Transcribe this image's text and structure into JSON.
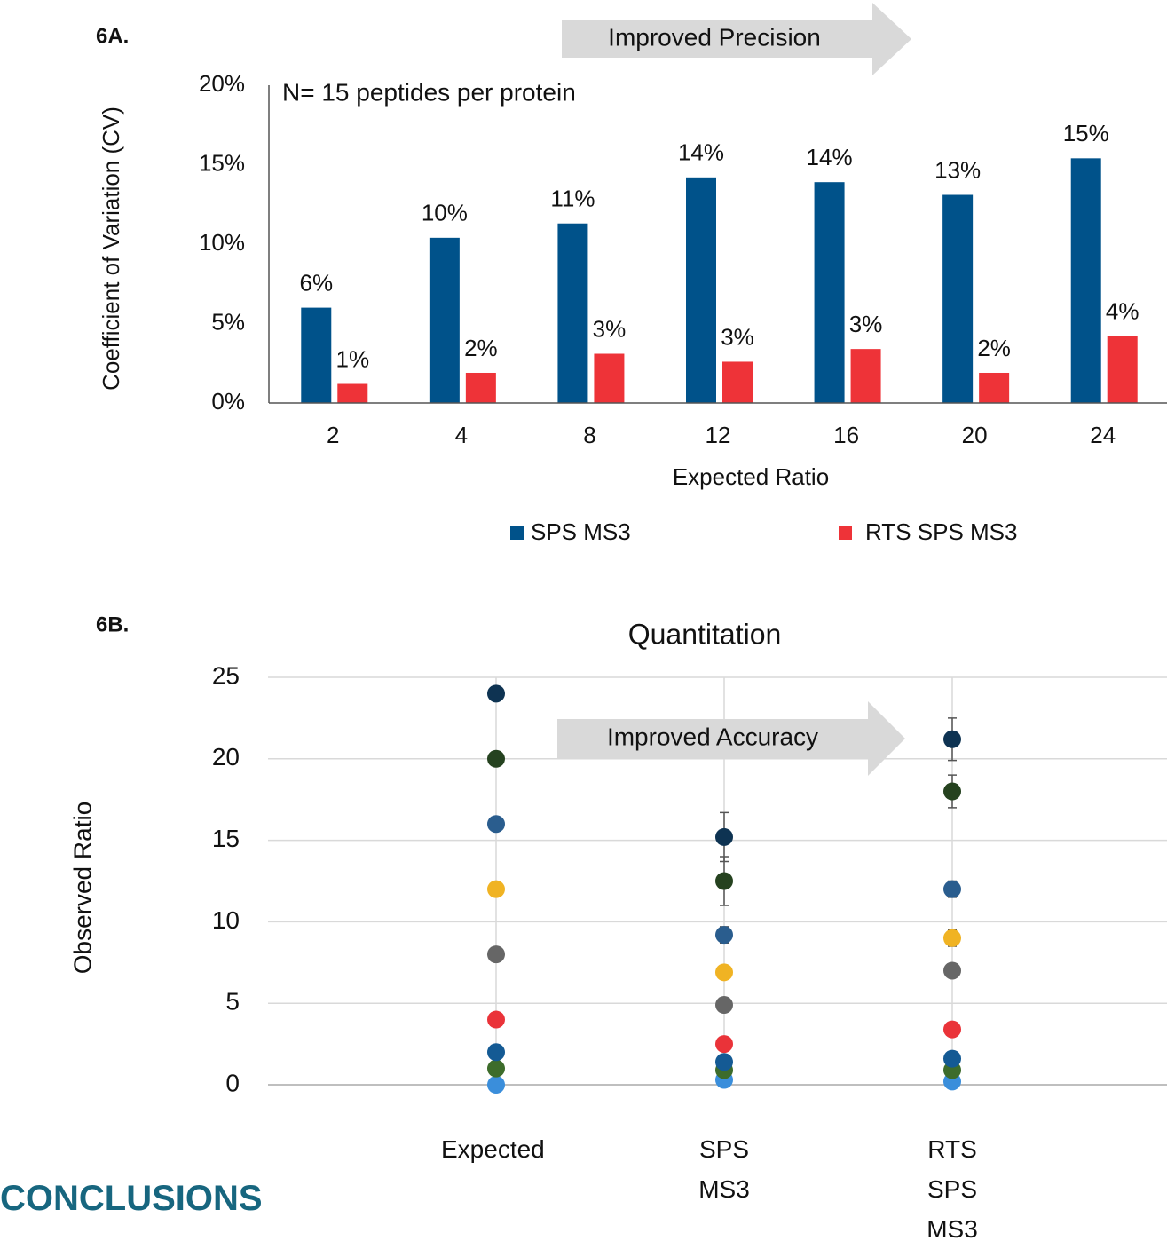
{
  "heading": "CONCLUSIONS",
  "chart_data": [
    {
      "type": "bar",
      "panel": "6A.",
      "annotation": "N= 15 peptides per protein",
      "arrow_label": "Improved Precision",
      "x_label": "Expected Ratio",
      "y_label": "Coefficient of Variation (CV)",
      "categories": [
        "2",
        "4",
        "8",
        "12",
        "16",
        "20",
        "24"
      ],
      "series": [
        {
          "name": "SPS MS3",
          "color": "#00528a",
          "values": [
            6.0,
            10.4,
            11.3,
            14.2,
            13.9,
            13.1,
            15.4
          ],
          "value_labels": [
            "6%",
            "10%",
            "11%",
            "14%",
            "14%",
            "13%",
            "15%"
          ]
        },
        {
          "name": "RTS SPS MS3",
          "color": "#ee3338",
          "values": [
            1.2,
            1.9,
            3.1,
            2.6,
            3.4,
            1.9,
            4.2
          ],
          "value_labels": [
            "1%",
            "2%",
            "3%",
            "3%",
            "3%",
            "2%",
            "4%"
          ]
        }
      ],
      "ylim": [
        0,
        20
      ],
      "yticks": [
        {
          "value": 0,
          "label": "0%"
        },
        {
          "value": 5,
          "label": "5%"
        },
        {
          "value": 10,
          "label": "10%"
        },
        {
          "value": 15,
          "label": "15%"
        },
        {
          "value": 20,
          "label": "20%"
        }
      ],
      "legend": "bottom"
    },
    {
      "type": "scatter",
      "panel": "6B.",
      "title": "Quantitation",
      "arrow_label": "Improved Accuracy",
      "y_label": "Observed Ratio",
      "categories": [
        "Expected",
        "SPS MS3",
        "RTS SPS MS3"
      ],
      "series": [
        {
          "color": "#3a8edb",
          "values": [
            0,
            0.3,
            0.2
          ],
          "errors": [
            null,
            null,
            null
          ]
        },
        {
          "color": "#3d6c2b",
          "values": [
            1,
            0.9,
            0.9
          ],
          "errors": [
            null,
            null,
            null
          ]
        },
        {
          "color": "#145a94",
          "values": [
            2,
            1.4,
            1.6
          ],
          "errors": [
            null,
            null,
            null
          ]
        },
        {
          "color": "#ea3339",
          "values": [
            4,
            2.5,
            3.4
          ],
          "errors": [
            null,
            null,
            null
          ]
        },
        {
          "color": "#666666",
          "values": [
            8,
            4.9,
            7.0
          ],
          "errors": [
            null,
            null,
            null
          ]
        },
        {
          "color": "#f0b323",
          "values": [
            12,
            6.9,
            9.0
          ],
          "errors": [
            null,
            0.4,
            0.5
          ]
        },
        {
          "color": "#2a5d8e",
          "values": [
            16,
            9.2,
            12.0
          ],
          "errors": [
            null,
            0.5,
            0.5
          ]
        },
        {
          "color": "#25421f",
          "values": [
            20,
            12.5,
            18.0
          ],
          "errors": [
            null,
            1.5,
            1.0
          ]
        },
        {
          "color": "#0e3352",
          "values": [
            24,
            15.2,
            21.2
          ],
          "errors": [
            null,
            1.5,
            1.3
          ]
        }
      ],
      "ylim": [
        0,
        25
      ],
      "yticks": [
        0,
        5,
        10,
        15,
        20,
        25
      ],
      "grid": true
    }
  ]
}
